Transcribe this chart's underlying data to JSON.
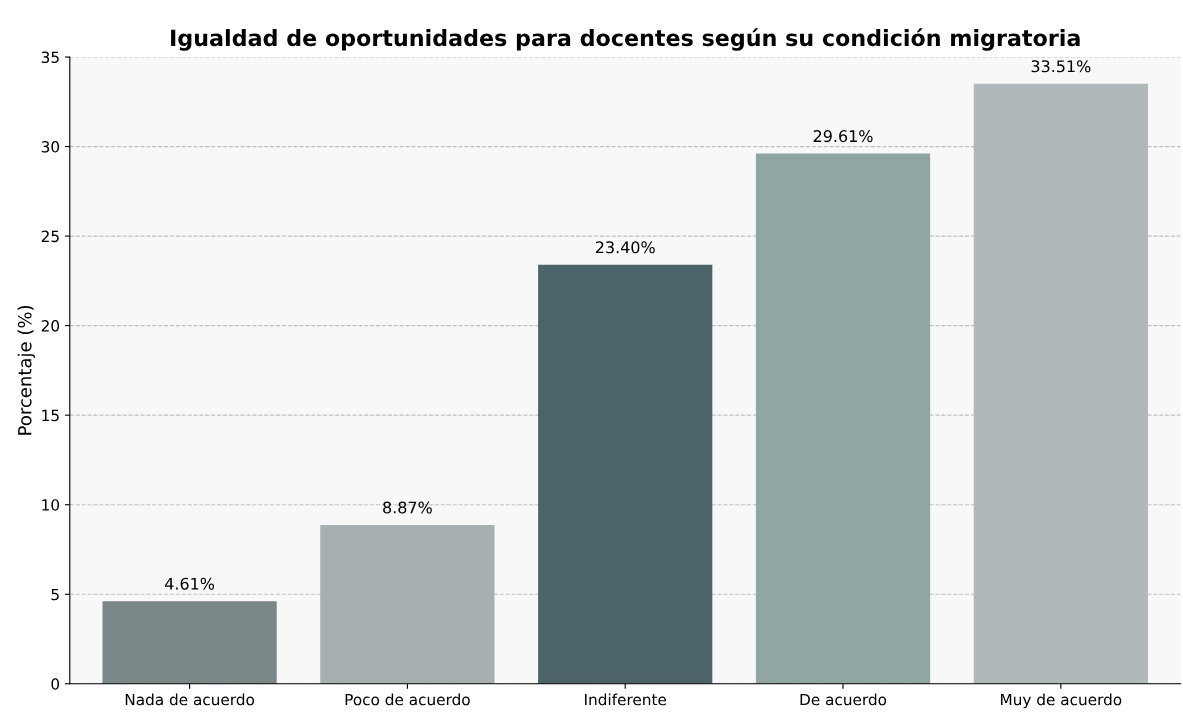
{
  "chart_data": {
    "type": "bar",
    "title": "Igualdad de oportunidades para docentes según su condición migratoria",
    "ylabel": "Porcentaje (%)",
    "categories": [
      "Nada de acuerdo",
      "Poco de acuerdo",
      "Indiferente",
      "De acuerdo",
      "Muy de acuerdo"
    ],
    "values": [
      4.61,
      8.87,
      23.4,
      29.61,
      33.51
    ],
    "colors": [
      "#7b888a",
      "#a8afb0",
      "#4a6469",
      "#90a6a3",
      "#b0b8ba"
    ],
    "value_labels": [
      "4.61%",
      "8.87%",
      "23.40%",
      "29.61%",
      "33.51%"
    ],
    "ylim": [
      0,
      35
    ],
    "yticks": [
      0,
      5,
      10,
      15,
      20,
      25,
      30,
      35
    ],
    "grid": "y"
  }
}
